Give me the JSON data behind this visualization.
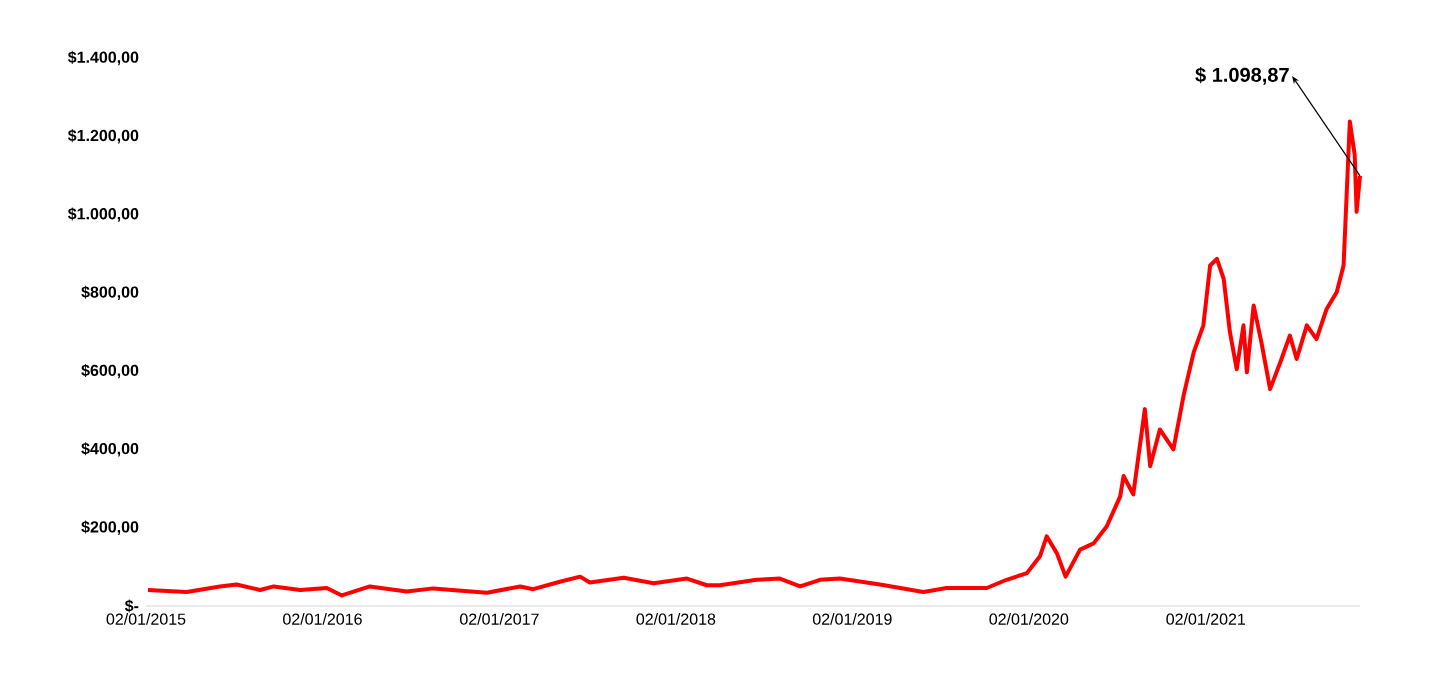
{
  "chart_data": {
    "type": "line",
    "color": "#ff0000",
    "x": [
      "2015-01-06",
      "2015-03-27",
      "2015-06-04",
      "2015-07-08",
      "2015-08-26",
      "2015-09-23",
      "2015-11-17",
      "2016-01-11",
      "2016-02-11",
      "2016-04-09",
      "2016-06-24",
      "2016-08-18",
      "2016-12-07",
      "2017-02-14",
      "2017-03-13",
      "2017-05-07",
      "2017-06-18",
      "2017-07-08",
      "2017-09-16",
      "2017-11-17",
      "2018-01-25",
      "2018-03-07",
      "2018-04-03",
      "2018-06-18",
      "2018-08-05",
      "2018-09-16",
      "2018-10-27",
      "2018-12-07",
      "2019-02-28",
      "2019-05-29",
      "2019-07-16",
      "2019-10-07",
      "2019-11-17",
      "2019-12-29",
      "2020-01-25",
      "2020-02-08",
      "2020-02-29",
      "2020-03-18",
      "2020-04-17",
      "2020-05-15",
      "2020-06-11",
      "2020-07-09",
      "2020-07-16",
      "2020-08-05",
      "2020-08-29",
      "2020-09-09",
      "2020-09-29",
      "2020-10-27",
      "2020-11-17",
      "2020-12-08",
      "2020-12-28",
      "2021-01-11",
      "2021-01-25",
      "2021-02-08",
      "2021-02-21",
      "2021-03-07",
      "2021-03-21",
      "2021-03-28",
      "2021-04-11",
      "2021-04-27",
      "2021-05-15",
      "2021-06-05",
      "2021-06-25",
      "2021-07-09",
      "2021-07-30",
      "2021-08-19",
      "2021-09-09",
      "2021-09-30",
      "2021-10-14",
      "2021-10-27",
      "2021-11-06",
      "2021-11-10",
      "2021-11-17"
    ],
    "values": [
      41,
      36,
      50,
      55,
      41,
      50,
      41,
      46,
      27,
      50,
      37,
      45,
      34,
      50,
      43,
      62,
      75,
      60,
      72,
      58,
      70,
      53,
      53,
      67,
      70,
      50,
      67,
      70,
      55,
      36,
      46,
      46,
      67,
      84,
      127,
      178,
      135,
      75,
      144,
      160,
      203,
      280,
      332,
      285,
      503,
      357,
      451,
      400,
      537,
      648,
      717,
      870,
      887,
      836,
      699,
      605,
      717,
      597,
      768,
      674,
      554,
      622,
      691,
      631,
      717,
      682,
      759,
      802,
      870,
      1238,
      1153,
      1007,
      1098.87
    ],
    "xlim": [
      "2015-01-02",
      "2021-11-17"
    ],
    "xticks": [
      {
        "value": "2015-01-02",
        "label": "02/01/2015"
      },
      {
        "value": "2016-01-02",
        "label": "02/01/2016"
      },
      {
        "value": "2017-01-02",
        "label": "02/01/2017"
      },
      {
        "value": "2018-01-02",
        "label": "02/01/2018"
      },
      {
        "value": "2019-01-02",
        "label": "02/01/2019"
      },
      {
        "value": "2020-01-02",
        "label": "02/01/2020"
      },
      {
        "value": "2021-01-02",
        "label": "02/01/2021"
      }
    ],
    "ylim": [
      0,
      1400
    ],
    "yticks": [
      {
        "value": 0,
        "label": "$-"
      },
      {
        "value": 200,
        "label": "$200,00"
      },
      {
        "value": 400,
        "label": "$400,00"
      },
      {
        "value": 600,
        "label": "$600,00"
      },
      {
        "value": 800,
        "label": "$800,00"
      },
      {
        "value": 1000,
        "label": "$1.000,00"
      },
      {
        "value": 1200,
        "label": "$1.200,00"
      },
      {
        "value": 1400,
        "label": "$1.400,00"
      }
    ],
    "annotations": [
      {
        "text": "$ 1.098,87",
        "x": "2021-11-17",
        "y": 1098.87
      }
    ],
    "grid": false,
    "marker": "none",
    "line_style": "solid"
  }
}
